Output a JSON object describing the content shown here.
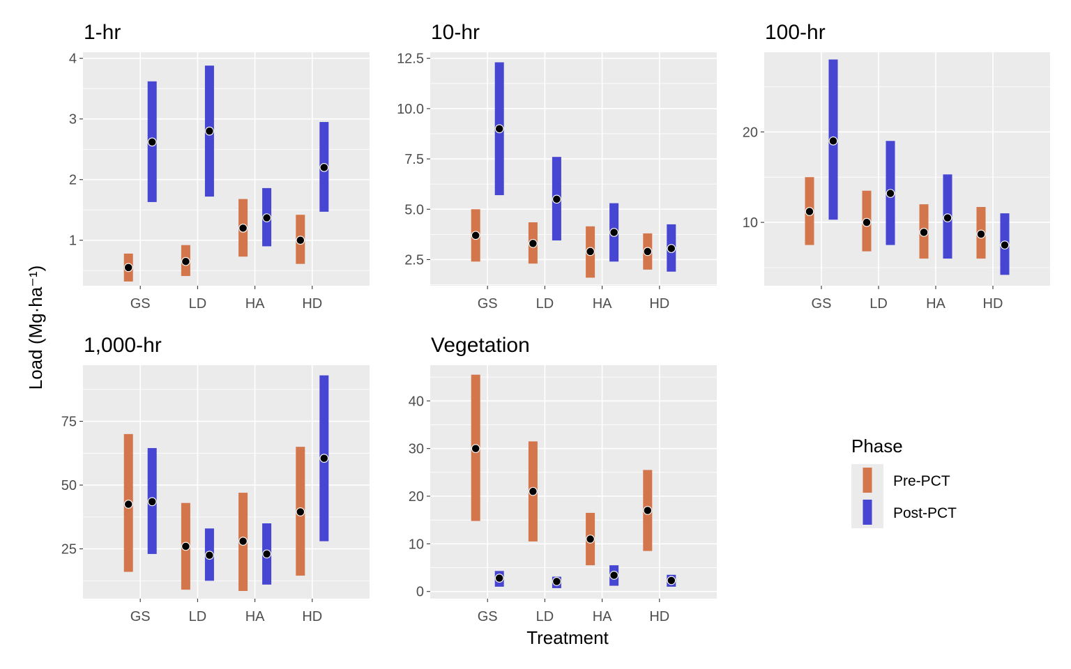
{
  "chart_data": {
    "type": "range-bar",
    "ylabel": "Load (Mg·ha⁻¹)",
    "xlabel": "Treatment",
    "categories": [
      "GS",
      "LD",
      "HA",
      "HD"
    ],
    "grid": true,
    "legend": {
      "title": "Phase",
      "placement": "bottom-right",
      "items": [
        {
          "name": "Pre-PCT",
          "color": "#d4764b"
        },
        {
          "name": "Post-PCT",
          "color": "#4646d2"
        }
      ]
    },
    "series_colors": {
      "Pre-PCT": "#d4764b",
      "Post-PCT": "#4646d2"
    },
    "point_color": "#000000",
    "panels": [
      {
        "title": "1-hr",
        "ylim": [
          0.25,
          4.1
        ],
        "yticks": [
          1,
          2,
          3,
          4
        ],
        "yticklabels": [
          "1",
          "2",
          "3",
          "4"
        ],
        "series": [
          {
            "name": "Pre-PCT",
            "low": [
              0.32,
              0.41,
              0.73,
              0.61
            ],
            "mid": [
              0.55,
              0.65,
              1.2,
              1.0
            ],
            "high": [
              0.78,
              0.92,
              1.68,
              1.42
            ]
          },
          {
            "name": "Post-PCT",
            "low": [
              1.63,
              1.72,
              0.9,
              1.47
            ],
            "mid": [
              2.62,
              2.8,
              1.37,
              2.2
            ],
            "high": [
              3.62,
              3.88,
              1.86,
              2.95
            ]
          }
        ]
      },
      {
        "title": "10-hr",
        "ylim": [
          1.2,
          12.8
        ],
        "yticks": [
          2.5,
          5.0,
          7.5,
          10.0,
          12.5
        ],
        "yticklabels": [
          "2.5",
          "5.0",
          "7.5",
          "10.0",
          "12.5"
        ],
        "series": [
          {
            "name": "Pre-PCT",
            "low": [
              2.4,
              2.3,
              1.6,
              2.0
            ],
            "mid": [
              3.7,
              3.3,
              2.9,
              2.9
            ],
            "high": [
              5.0,
              4.35,
              4.15,
              3.8
            ]
          },
          {
            "name": "Post-PCT",
            "low": [
              5.7,
              3.45,
              2.4,
              1.9
            ],
            "mid": [
              9.0,
              5.5,
              3.85,
              3.05
            ],
            "high": [
              12.3,
              7.6,
              5.3,
              4.25
            ]
          }
        ]
      },
      {
        "title": "100-hr",
        "ylim": [
          3.0,
          28.8
        ],
        "yticks": [
          10,
          20
        ],
        "yticklabels": [
          "10",
          "20"
        ],
        "series": [
          {
            "name": "Pre-PCT",
            "low": [
              7.5,
              6.8,
              6.0,
              6.0
            ],
            "mid": [
              11.2,
              10.0,
              8.9,
              8.7
            ],
            "high": [
              15.0,
              13.5,
              12.0,
              11.7
            ]
          },
          {
            "name": "Post-PCT",
            "low": [
              10.3,
              7.5,
              6.0,
              4.2
            ],
            "mid": [
              19.0,
              13.2,
              10.5,
              7.5
            ],
            "high": [
              28.0,
              19.0,
              15.3,
              11.0
            ]
          }
        ]
      },
      {
        "title": "1,000-hr",
        "ylim": [
          5.5,
          97.0
        ],
        "yticks": [
          25,
          50,
          75
        ],
        "yticklabels": [
          "25",
          "50",
          "75"
        ],
        "series": [
          {
            "name": "Pre-PCT",
            "low": [
              16.0,
              9.0,
              8.5,
              14.5
            ],
            "mid": [
              42.5,
              26.0,
              28.0,
              39.5
            ],
            "high": [
              70.0,
              43.0,
              47.0,
              65.0
            ]
          },
          {
            "name": "Post-PCT",
            "low": [
              23.0,
              12.5,
              11.0,
              28.0
            ],
            "mid": [
              43.5,
              22.5,
              23.0,
              60.5
            ],
            "high": [
              64.5,
              33.0,
              35.0,
              93.0
            ]
          }
        ]
      },
      {
        "title": "Vegetation",
        "ylim": [
          -1.5,
          47.5
        ],
        "yticks": [
          0,
          10,
          20,
          30,
          40
        ],
        "yticklabels": [
          "0",
          "10",
          "20",
          "30",
          "40"
        ],
        "series": [
          {
            "name": "Pre-PCT",
            "low": [
              14.8,
              10.5,
              5.5,
              8.5
            ],
            "mid": [
              30.0,
              21.0,
              11.0,
              17.0
            ],
            "high": [
              45.5,
              31.5,
              16.5,
              25.5
            ]
          },
          {
            "name": "Post-PCT",
            "low": [
              1.0,
              0.7,
              1.2,
              1.0
            ],
            "mid": [
              2.8,
              2.1,
              3.4,
              2.3
            ],
            "high": [
              4.3,
              3.1,
              5.5,
              3.5
            ]
          }
        ]
      }
    ]
  }
}
